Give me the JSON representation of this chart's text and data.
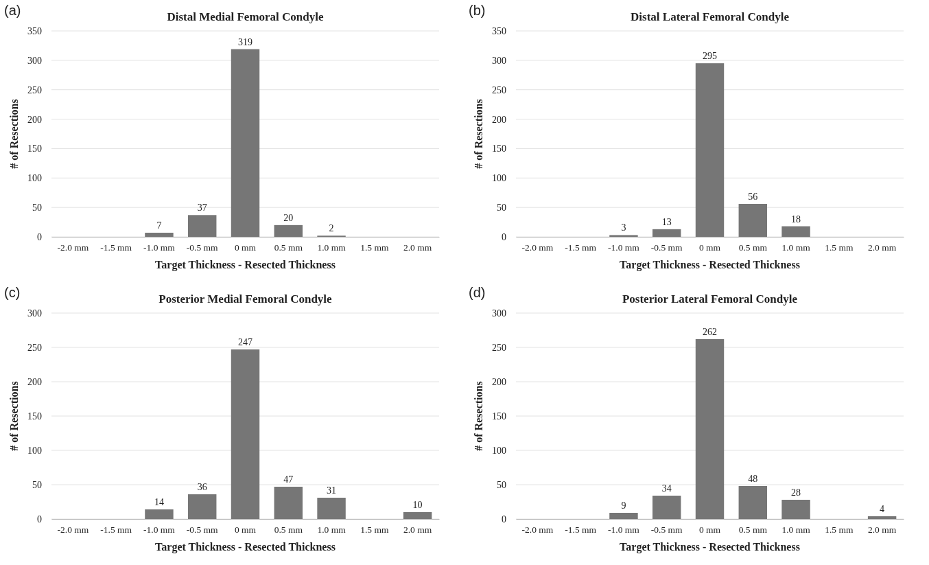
{
  "chart_data": [
    {
      "type": "bar",
      "title": "Distal Medial Femoral Condyle",
      "annotations": [
        "(a)"
      ],
      "xlabel": "Target Thickness - Resected Thickness",
      "ylabel": "# of Resections",
      "categories": [
        "-2.0 mm",
        "-1.5 mm",
        "-1.0 mm",
        "-0.5 mm",
        "0 mm",
        "0.5 mm",
        "1.0 mm",
        "1.5 mm",
        "2.0 mm"
      ],
      "values": [
        null,
        null,
        7,
        37,
        319,
        20,
        2,
        null,
        null
      ],
      "color": "#767676",
      "ylim": [
        0,
        350
      ],
      "yticks": [
        0,
        50,
        100,
        150,
        200,
        250,
        300,
        350
      ],
      "grid": "y",
      "data_labels": true
    },
    {
      "type": "bar",
      "title": "Distal Lateral Femoral Condyle",
      "annotations": [
        "(b)"
      ],
      "xlabel": "Target Thickness - Resected Thickness",
      "ylabel": "# of Resections",
      "categories": [
        "-2.0 mm",
        "-1.5 mm",
        "-1.0 mm",
        "-0.5 mm",
        "0 mm",
        "0.5 mm",
        "1.0 mm",
        "1.5 mm",
        "2.0 mm"
      ],
      "values": [
        null,
        null,
        3,
        13,
        295,
        56,
        18,
        null,
        null
      ],
      "color": "#767676",
      "ylim": [
        0,
        350
      ],
      "yticks": [
        0,
        50,
        100,
        150,
        200,
        250,
        300,
        350
      ],
      "grid": "y",
      "data_labels": true
    },
    {
      "type": "bar",
      "title": "Posterior Medial Femoral Condyle",
      "annotations": [
        "(c)"
      ],
      "xlabel": "Target Thickness - Resected Thickness",
      "ylabel": "# of Resections",
      "categories": [
        "-2.0 mm",
        "-1.5 mm",
        "-1.0 mm",
        "-0.5 mm",
        "0 mm",
        "0.5 mm",
        "1.0 mm",
        "1.5 mm",
        "2.0 mm"
      ],
      "values": [
        null,
        null,
        14,
        36,
        247,
        47,
        31,
        null,
        10
      ],
      "color": "#767676",
      "ylim": [
        0,
        300
      ],
      "yticks": [
        0,
        50,
        100,
        150,
        200,
        250,
        300
      ],
      "grid": "y",
      "data_labels": true
    },
    {
      "type": "bar",
      "title": "Posterior Lateral Femoral Condyle",
      "annotations": [
        "(d)"
      ],
      "xlabel": "Target Thickness - Resected Thickness",
      "ylabel": "# of Resections",
      "categories": [
        "-2.0 mm",
        "-1.5 mm",
        "-1.0 mm",
        "-0.5 mm",
        "0 mm",
        "0.5 mm",
        "1.0 mm",
        "1.5 mm",
        "2.0 mm"
      ],
      "values": [
        null,
        null,
        9,
        34,
        262,
        48,
        28,
        null,
        4
      ],
      "color": "#767676",
      "ylim": [
        0,
        300
      ],
      "yticks": [
        0,
        50,
        100,
        150,
        200,
        250,
        300
      ],
      "grid": "y",
      "data_labels": true
    }
  ]
}
